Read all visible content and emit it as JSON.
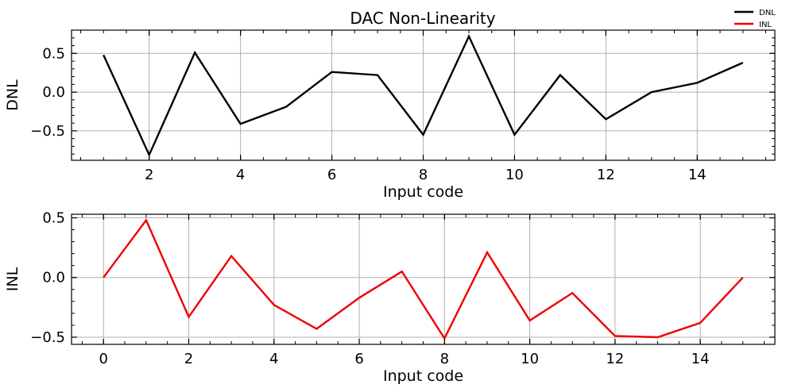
{
  "chart_data": [
    {
      "type": "line",
      "title": "DAC Non-Linearity",
      "xlabel": "Input code",
      "ylabel": "DNL",
      "xlim": [
        0.3,
        15.7
      ],
      "ylim": [
        -0.88,
        0.8
      ],
      "xticks": [
        2,
        4,
        6,
        8,
        10,
        12,
        14
      ],
      "yticks": [
        -0.5,
        0.0,
        0.5
      ],
      "ytick_labels": [
        "−0.5",
        "0.0",
        "0.5"
      ],
      "grid": true,
      "color": "#000000",
      "series": [
        {
          "name": "DNL",
          "x": [
            1,
            2,
            3,
            4,
            5,
            6,
            7,
            8,
            9,
            10,
            11,
            12,
            13,
            14,
            15
          ],
          "values": [
            0.48,
            -0.81,
            0.51,
            -0.41,
            -0.19,
            0.26,
            0.22,
            -0.55,
            0.72,
            -0.55,
            0.22,
            -0.35,
            0.0,
            0.12,
            0.38
          ]
        }
      ]
    },
    {
      "type": "line",
      "xlabel": "Input code",
      "ylabel": "INL",
      "xlim": [
        -0.75,
        15.75
      ],
      "ylim": [
        -0.56,
        0.53
      ],
      "xticks": [
        0,
        2,
        4,
        6,
        8,
        10,
        12,
        14
      ],
      "yticks": [
        -0.5,
        0.0,
        0.5
      ],
      "ytick_labels": [
        "−0.5",
        "0.0",
        "0.5"
      ],
      "grid": true,
      "color": "#ee0000",
      "series": [
        {
          "name": "INL",
          "x": [
            0,
            1,
            2,
            3,
            4,
            5,
            6,
            7,
            8,
            9,
            10,
            11,
            12,
            13,
            14,
            15
          ],
          "values": [
            0.0,
            0.48,
            -0.33,
            0.18,
            -0.23,
            -0.43,
            -0.17,
            0.05,
            -0.51,
            0.21,
            -0.36,
            -0.13,
            -0.49,
            -0.5,
            -0.38,
            0.0
          ]
        }
      ]
    }
  ],
  "legend": {
    "placement": "top-right",
    "entries": [
      {
        "label": "DNL",
        "color": "#000000"
      },
      {
        "label": "INL",
        "color": "#ee0000"
      }
    ]
  }
}
